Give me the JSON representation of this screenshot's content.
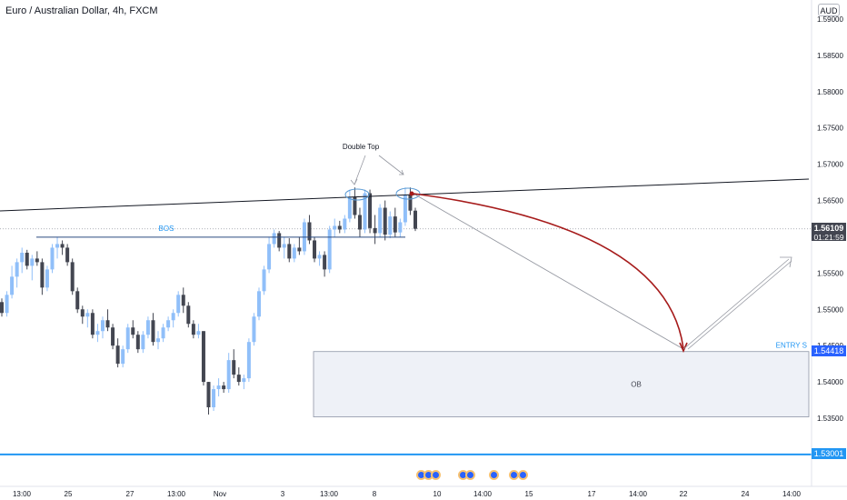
{
  "header": {
    "title": "Euro / Australian Dollar, 4h, FXCM",
    "currency": "AUD"
  },
  "price_axis": {
    "ticks": [
      "1.59000",
      "1.58500",
      "1.58000",
      "1.57500",
      "1.57000",
      "1.56500",
      "1.55500",
      "1.55000",
      "1.54500",
      "1.54000",
      "1.53500"
    ],
    "current_price": "1.56109",
    "countdown": "01:21:59",
    "entry_price": "1.54418",
    "bottom_price": "1.53001"
  },
  "time_axis": {
    "labels": [
      "13:00",
      "25",
      "27",
      "13:00",
      "Nov",
      "3",
      "13:00",
      "8",
      "10",
      "14:00",
      "15",
      "17",
      "14:00",
      "22",
      "24",
      "14:00"
    ]
  },
  "annotations": {
    "bos": "BOS",
    "double_top": "Double Top",
    "ob": "OB",
    "entry": "ENTRY S"
  },
  "colors": {
    "up": "#90bff9",
    "down": "#434651",
    "accent": "#2196f3",
    "path": "#a61b1b",
    "bottom_line": "#2196f3"
  },
  "events": [
    "event-icon",
    "event-icon",
    "event-icon",
    "event-icon",
    "event-icon",
    "event-icon",
    "event-icon"
  ],
  "chart_data": {
    "type": "candlestick",
    "symbol": "EURAUD",
    "timeframe": "4h",
    "ylim": [
      1.533,
      1.592
    ],
    "grid": false,
    "candles": [
      [
        1.551,
        1.5515,
        1.549,
        1.5495
      ],
      [
        1.5495,
        1.5525,
        1.549,
        1.552
      ],
      [
        1.552,
        1.556,
        1.5515,
        1.5545
      ],
      [
        1.5545,
        1.557,
        1.553,
        1.5565
      ],
      [
        1.5565,
        1.5585,
        1.555,
        1.5578
      ],
      [
        1.5578,
        1.5582,
        1.5555,
        1.556
      ],
      [
        1.556,
        1.5575,
        1.554,
        1.557
      ],
      [
        1.557,
        1.558,
        1.556,
        1.5565
      ],
      [
        1.5565,
        1.557,
        1.552,
        1.553
      ],
      [
        1.553,
        1.556,
        1.5525,
        1.5555
      ],
      [
        1.5555,
        1.559,
        1.555,
        1.5585
      ],
      [
        1.5585,
        1.56,
        1.557,
        1.559
      ],
      [
        1.559,
        1.5595,
        1.5575,
        1.5585
      ],
      [
        1.5585,
        1.559,
        1.556,
        1.5565
      ],
      [
        1.5565,
        1.557,
        1.552,
        1.5525
      ],
      [
        1.5525,
        1.553,
        1.5495,
        1.55
      ],
      [
        1.55,
        1.5505,
        1.548,
        1.549
      ],
      [
        1.549,
        1.55,
        1.5475,
        1.5495
      ],
      [
        1.5495,
        1.55,
        1.546,
        1.5465
      ],
      [
        1.5465,
        1.548,
        1.5455,
        1.547
      ],
      [
        1.547,
        1.549,
        1.546,
        1.5485
      ],
      [
        1.5485,
        1.55,
        1.547,
        1.5475
      ],
      [
        1.5475,
        1.548,
        1.5445,
        1.545
      ],
      [
        1.545,
        1.546,
        1.542,
        1.5425
      ],
      [
        1.5425,
        1.545,
        1.542,
        1.5445
      ],
      [
        1.5445,
        1.548,
        1.544,
        1.5475
      ],
      [
        1.5475,
        1.5485,
        1.546,
        1.5465
      ],
      [
        1.5465,
        1.547,
        1.544,
        1.5445
      ],
      [
        1.5445,
        1.547,
        1.544,
        1.5465
      ],
      [
        1.5465,
        1.549,
        1.546,
        1.5485
      ],
      [
        1.5485,
        1.5495,
        1.545,
        1.5455
      ],
      [
        1.5455,
        1.547,
        1.5445,
        1.546
      ],
      [
        1.546,
        1.548,
        1.5455,
        1.5475
      ],
      [
        1.5475,
        1.549,
        1.547,
        1.5485
      ],
      [
        1.5485,
        1.55,
        1.5475,
        1.5495
      ],
      [
        1.5495,
        1.5525,
        1.549,
        1.552
      ],
      [
        1.552,
        1.553,
        1.5495,
        1.5505
      ],
      [
        1.5505,
        1.551,
        1.5475,
        1.548
      ],
      [
        1.548,
        1.5485,
        1.546,
        1.5465
      ],
      [
        1.5465,
        1.548,
        1.546,
        1.547
      ],
      [
        1.547,
        1.547,
        1.5395,
        1.54
      ],
      [
        1.54,
        1.54,
        1.5355,
        1.5365
      ],
      [
        1.5365,
        1.5395,
        1.536,
        1.539
      ],
      [
        1.539,
        1.5405,
        1.538,
        1.5395
      ],
      [
        1.5395,
        1.54,
        1.5385,
        1.539
      ],
      [
        1.539,
        1.544,
        1.5385,
        1.543
      ],
      [
        1.543,
        1.5445,
        1.5405,
        1.541
      ],
      [
        1.541,
        1.542,
        1.5395,
        1.54
      ],
      [
        1.54,
        1.541,
        1.539,
        1.5405
      ],
      [
        1.5405,
        1.546,
        1.54,
        1.5455
      ],
      [
        1.5455,
        1.5495,
        1.545,
        1.549
      ],
      [
        1.549,
        1.553,
        1.5485,
        1.5525
      ],
      [
        1.5525,
        1.556,
        1.552,
        1.5555
      ],
      [
        1.5555,
        1.56,
        1.555,
        1.559
      ],
      [
        1.559,
        1.561,
        1.5585,
        1.5605
      ],
      [
        1.5605,
        1.5608,
        1.558,
        1.5585
      ],
      [
        1.5585,
        1.56,
        1.557,
        1.559
      ],
      [
        1.559,
        1.5598,
        1.5565,
        1.557
      ],
      [
        1.557,
        1.559,
        1.5565,
        1.5585
      ],
      [
        1.5585,
        1.56,
        1.5575,
        1.558
      ],
      [
        1.558,
        1.5625,
        1.5575,
        1.562
      ],
      [
        1.562,
        1.563,
        1.559,
        1.5595
      ],
      [
        1.5595,
        1.56,
        1.5565,
        1.557
      ],
      [
        1.557,
        1.558,
        1.556,
        1.5575
      ],
      [
        1.5575,
        1.558,
        1.5545,
        1.5555
      ],
      [
        1.5555,
        1.5615,
        1.555,
        1.561
      ],
      [
        1.561,
        1.5625,
        1.56,
        1.5615
      ],
      [
        1.5615,
        1.5622,
        1.5605,
        1.561
      ],
      [
        1.561,
        1.563,
        1.5605,
        1.5625
      ],
      [
        1.5625,
        1.5665,
        1.562,
        1.5655
      ],
      [
        1.5655,
        1.5668,
        1.5625,
        1.563
      ],
      [
        1.563,
        1.564,
        1.56,
        1.561
      ],
      [
        1.561,
        1.5665,
        1.5605,
        1.566
      ],
      [
        1.566,
        1.5665,
        1.5605,
        1.5612
      ],
      [
        1.5612,
        1.563,
        1.559,
        1.5605
      ],
      [
        1.5605,
        1.5645,
        1.56,
        1.564
      ],
      [
        1.564,
        1.565,
        1.5595,
        1.5603
      ],
      [
        1.5603,
        1.5635,
        1.5598,
        1.5628
      ],
      [
        1.5628,
        1.564,
        1.56,
        1.5606
      ],
      [
        1.5606,
        1.5625,
        1.56,
        1.562
      ],
      [
        1.562,
        1.5668,
        1.5615,
        1.5658
      ],
      [
        1.5658,
        1.5668,
        1.563,
        1.5636
      ],
      [
        1.5636,
        1.564,
        1.5608,
        1.5611
      ]
    ],
    "levels": {
      "bos": 1.55994,
      "current": 1.56109,
      "entry_s": 1.54418,
      "bottom_line": 1.53001,
      "ob_zone": [
        1.53518,
        1.54418
      ]
    }
  }
}
